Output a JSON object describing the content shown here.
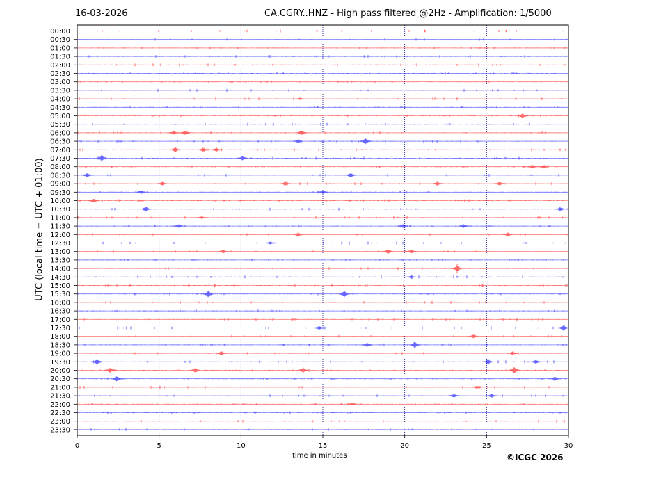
{
  "header": {
    "date": "16-03-2026",
    "title": "CA.CGRY..HNZ - High pass filtered @2Hz - Amplification: 1/5000"
  },
  "footer": {
    "credit": "©ICGC 2026"
  },
  "colors": {
    "trace_a": "#ff0000",
    "trace_b": "#0000ff",
    "axis": "#000000",
    "grid": "#000080"
  },
  "chart_data": {
    "type": "line",
    "subtype": "helicorder",
    "xlabel": "time in minutes",
    "ylabel": "UTC (local time = UTC + 01:00)",
    "xlim": [
      0,
      30
    ],
    "x_ticks": [
      "0",
      "5",
      "10",
      "15",
      "20",
      "25",
      "30"
    ],
    "x_grid": [
      5,
      10,
      15,
      20,
      25
    ],
    "row_labels": [
      "00:00",
      "00:30",
      "01:00",
      "01:30",
      "02:00",
      "02:30",
      "03:00",
      "03:30",
      "04:00",
      "04:30",
      "05:00",
      "05:30",
      "06:00",
      "06:30",
      "07:00",
      "07:30",
      "08:00",
      "08:30",
      "09:00",
      "09:30",
      "10:00",
      "10:30",
      "11:00",
      "11:30",
      "12:00",
      "12:30",
      "13:00",
      "13:30",
      "14:00",
      "14:30",
      "15:00",
      "15:30",
      "16:00",
      "16:30",
      "17:00",
      "17:30",
      "18:00",
      "18:30",
      "19:00",
      "19:30",
      "20:00",
      "20:30",
      "21:00",
      "21:30",
      "22:00",
      "22:30",
      "23:00",
      "23:30"
    ],
    "series_colors_alternating": [
      "#ff0000",
      "#0000ff"
    ],
    "events": [
      {
        "row": "04:00",
        "minute": 13.6,
        "amp": 1.5
      },
      {
        "row": "05:00",
        "minute": 27.2,
        "amp": 4
      },
      {
        "row": "06:00",
        "minute": 5.9,
        "amp": 3
      },
      {
        "row": "06:00",
        "minute": 6.6,
        "amp": 4
      },
      {
        "row": "06:00",
        "minute": 13.7,
        "amp": 4
      },
      {
        "row": "06:30",
        "minute": 13.5,
        "amp": 3
      },
      {
        "row": "06:30",
        "minute": 17.6,
        "amp": 5
      },
      {
        "row": "07:00",
        "minute": 6.0,
        "amp": 4
      },
      {
        "row": "07:00",
        "minute": 7.7,
        "amp": 3
      },
      {
        "row": "07:00",
        "minute": 8.5,
        "amp": 3
      },
      {
        "row": "07:30",
        "minute": 1.5,
        "amp": 5
      },
      {
        "row": "07:30",
        "minute": 10.1,
        "amp": 4
      },
      {
        "row": "08:00",
        "minute": 27.8,
        "amp": 3
      },
      {
        "row": "08:00",
        "minute": 28.5,
        "amp": 3
      },
      {
        "row": "08:30",
        "minute": 0.6,
        "amp": 3
      },
      {
        "row": "08:30",
        "minute": 16.7,
        "amp": 4
      },
      {
        "row": "09:00",
        "minute": 5.2,
        "amp": 3
      },
      {
        "row": "09:00",
        "minute": 12.7,
        "amp": 3
      },
      {
        "row": "09:00",
        "minute": 22.0,
        "amp": 3
      },
      {
        "row": "09:00",
        "minute": 25.8,
        "amp": 3
      },
      {
        "row": "09:30",
        "minute": 3.9,
        "amp": 3
      },
      {
        "row": "09:30",
        "minute": 15.0,
        "amp": 3
      },
      {
        "row": "10:00",
        "minute": 1.0,
        "amp": 3
      },
      {
        "row": "10:30",
        "minute": 4.2,
        "amp": 4
      },
      {
        "row": "10:30",
        "minute": 29.5,
        "amp": 3
      },
      {
        "row": "11:00",
        "minute": 7.6,
        "amp": 2
      },
      {
        "row": "11:30",
        "minute": 6.2,
        "amp": 3
      },
      {
        "row": "11:30",
        "minute": 19.9,
        "amp": 3
      },
      {
        "row": "11:30",
        "minute": 23.6,
        "amp": 3
      },
      {
        "row": "12:00",
        "minute": 13.5,
        "amp": 3
      },
      {
        "row": "12:00",
        "minute": 26.3,
        "amp": 3
      },
      {
        "row": "12:30",
        "minute": 11.8,
        "amp": 2
      },
      {
        "row": "13:00",
        "minute": 8.9,
        "amp": 3
      },
      {
        "row": "13:00",
        "minute": 19.0,
        "amp": 4
      },
      {
        "row": "13:00",
        "minute": 20.4,
        "amp": 3
      },
      {
        "row": "14:00",
        "minute": 23.2,
        "amp": 6
      },
      {
        "row": "14:30",
        "minute": 20.4,
        "amp": 2
      },
      {
        "row": "15:30",
        "minute": 8.0,
        "amp": 5
      },
      {
        "row": "15:30",
        "minute": 16.3,
        "amp": 5
      },
      {
        "row": "17:30",
        "minute": 14.8,
        "amp": 3
      },
      {
        "row": "17:30",
        "minute": 29.7,
        "amp": 5
      },
      {
        "row": "18:00",
        "minute": 24.2,
        "amp": 3
      },
      {
        "row": "18:30",
        "minute": 20.6,
        "amp": 5
      },
      {
        "row": "18:30",
        "minute": 17.7,
        "amp": 3
      },
      {
        "row": "19:00",
        "minute": 8.8,
        "amp": 3
      },
      {
        "row": "19:00",
        "minute": 26.6,
        "amp": 3
      },
      {
        "row": "19:30",
        "minute": 1.2,
        "amp": 5
      },
      {
        "row": "19:30",
        "minute": 25.1,
        "amp": 4
      },
      {
        "row": "19:30",
        "minute": 28.0,
        "amp": 3
      },
      {
        "row": "20:00",
        "minute": 2.0,
        "amp": 4
      },
      {
        "row": "20:00",
        "minute": 7.2,
        "amp": 4
      },
      {
        "row": "20:00",
        "minute": 13.8,
        "amp": 4
      },
      {
        "row": "20:00",
        "minute": 26.7,
        "amp": 6
      },
      {
        "row": "20:30",
        "minute": 2.4,
        "amp": 5
      },
      {
        "row": "20:30",
        "minute": 29.2,
        "amp": 3
      },
      {
        "row": "21:00",
        "minute": 24.4,
        "amp": 2
      },
      {
        "row": "21:30",
        "minute": 23.0,
        "amp": 3
      },
      {
        "row": "21:30",
        "minute": 25.3,
        "amp": 3
      },
      {
        "row": "22:00",
        "minute": 16.8,
        "amp": 2
      }
    ]
  }
}
